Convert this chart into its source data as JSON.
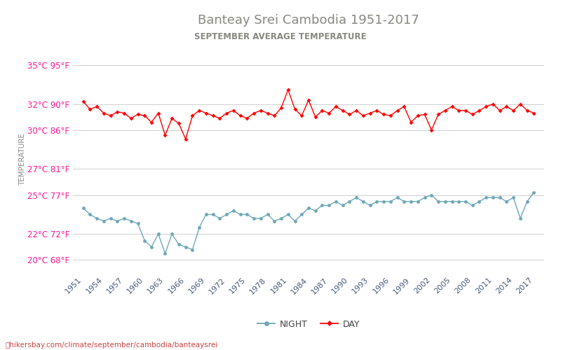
{
  "title": "Banteay Srei Cambodia 1951-2017",
  "subtitle": "SEPTEMBER AVERAGE TEMPERATURE",
  "ylabel": "TEMPERATURE",
  "bg_color": "#ffffff",
  "grid_color": "#d0d0d0",
  "day_color": "#ff0000",
  "night_color": "#6fa8b8",
  "title_color": "#888880",
  "subtitle_color": "#888880",
  "ylabel_color": "#888888",
  "ytick_color": "#ff1493",
  "xtick_color": "#4a5a7a",
  "legend_color": "#444444",
  "url_color": "#cc4444",
  "years": [
    1951,
    1952,
    1953,
    1954,
    1955,
    1956,
    1957,
    1958,
    1959,
    1960,
    1961,
    1962,
    1963,
    1964,
    1965,
    1966,
    1967,
    1968,
    1969,
    1970,
    1971,
    1972,
    1973,
    1974,
    1975,
    1976,
    1977,
    1978,
    1979,
    1980,
    1981,
    1982,
    1983,
    1984,
    1985,
    1986,
    1987,
    1988,
    1989,
    1990,
    1991,
    1992,
    1993,
    1994,
    1995,
    1996,
    1997,
    1998,
    1999,
    2000,
    2001,
    2002,
    2003,
    2004,
    2005,
    2006,
    2007,
    2008,
    2009,
    2010,
    2011,
    2012,
    2013,
    2014,
    2015,
    2016,
    2017
  ],
  "day_temps": [
    32.2,
    31.6,
    31.8,
    31.3,
    31.1,
    31.4,
    31.3,
    30.9,
    31.2,
    31.1,
    30.6,
    31.3,
    29.6,
    30.9,
    30.5,
    29.3,
    31.1,
    31.5,
    31.3,
    31.1,
    30.9,
    31.3,
    31.5,
    31.1,
    30.9,
    31.3,
    31.5,
    31.3,
    31.1,
    31.7,
    33.1,
    31.6,
    31.1,
    32.3,
    31.0,
    31.5,
    31.3,
    31.8,
    31.5,
    31.2,
    31.5,
    31.1,
    31.3,
    31.5,
    31.2,
    31.1,
    31.5,
    31.8,
    30.6,
    31.1,
    31.2,
    30.0,
    31.2,
    31.5,
    31.8,
    31.5,
    31.5,
    31.2,
    31.5,
    31.8,
    32.0,
    31.5,
    31.8,
    31.5,
    32.0,
    31.5,
    31.3
  ],
  "night_temps": [
    24.0,
    23.5,
    23.2,
    23.0,
    23.2,
    23.0,
    23.2,
    23.0,
    22.8,
    21.5,
    21.0,
    22.0,
    20.5,
    22.0,
    21.2,
    21.0,
    20.8,
    22.5,
    23.5,
    23.5,
    23.2,
    23.5,
    23.8,
    23.5,
    23.5,
    23.2,
    23.2,
    23.5,
    23.0,
    23.2,
    23.5,
    23.0,
    23.5,
    24.0,
    23.8,
    24.2,
    24.2,
    24.5,
    24.2,
    24.5,
    24.8,
    24.5,
    24.2,
    24.5,
    24.5,
    24.5,
    24.8,
    24.5,
    24.5,
    24.5,
    24.8,
    25.0,
    24.5,
    24.5,
    24.5,
    24.5,
    24.5,
    24.2,
    24.5,
    24.8,
    24.8,
    24.8,
    24.5,
    24.8,
    23.2,
    24.5,
    25.2
  ],
  "yticks_c": [
    20,
    22,
    25,
    27,
    30,
    32,
    35
  ],
  "yticks_f": [
    68,
    72,
    77,
    81,
    86,
    90,
    95
  ],
  "xtick_years": [
    1951,
    1954,
    1957,
    1960,
    1963,
    1966,
    1969,
    1972,
    1975,
    1978,
    1981,
    1984,
    1987,
    1990,
    1993,
    1996,
    1999,
    2002,
    2005,
    2008,
    2011,
    2014,
    2017
  ],
  "url_text": "hikersbay.com/climate/september/cambodia/banteaysrei",
  "ylim": [
    19.0,
    36.5
  ],
  "xlim": [
    1949.5,
    2018.5
  ]
}
